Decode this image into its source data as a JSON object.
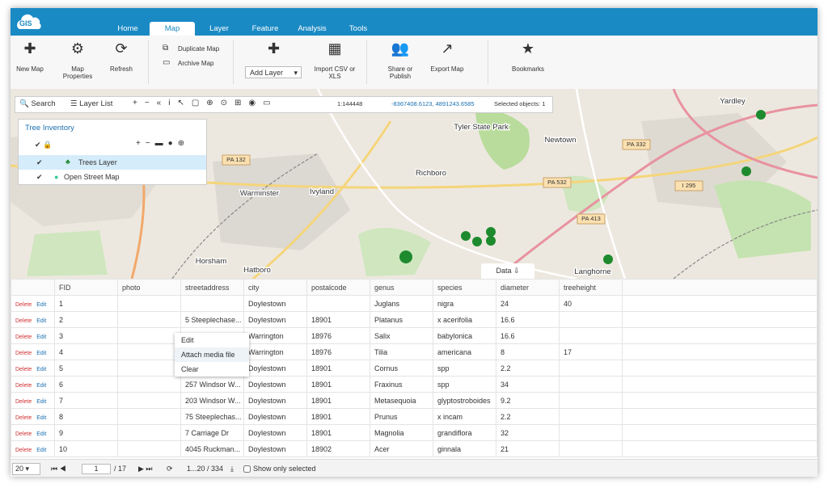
{
  "header": {
    "logo": "GIS",
    "tabs": [
      "Home",
      "Map",
      "Layer",
      "Feature",
      "Analysis",
      "Tools"
    ],
    "active_tab_index": 1
  },
  "ribbon": {
    "buttons": [
      "New Map",
      "Map Properties",
      "Refresh",
      "Duplicate Map",
      "Archive Map",
      "Add Layer",
      "Import CSV or XLS",
      "Share or Publish",
      "Export Map",
      "Bookmarks"
    ]
  },
  "map_toolbar": {
    "search": "Search",
    "layer_list": "Layer List",
    "scale": "1:144448",
    "coordinates": "-8367408.6123, 4891243.6585",
    "selected": "Selected objects: 1"
  },
  "layer_panel": {
    "title": "Tree Inventory",
    "layers": [
      "Trees Layer",
      "Open Street Map"
    ]
  },
  "map_labels": [
    "Warminster",
    "Ivyland",
    "Richboro",
    "Newtown",
    "Yardley",
    "Horsham",
    "Hatboro",
    "Langhorne",
    "Tyler State Park",
    "PA 132",
    "PA 532",
    "PA 332",
    "PA 413",
    "I 295"
  ],
  "data_tab": "Data",
  "table": {
    "action_labels": [
      "Delete",
      "Edit"
    ],
    "columns": [
      "FID",
      "photo",
      "streetaddress",
      "city",
      "postalcode",
      "genus",
      "species",
      "diameter",
      "treeheight"
    ],
    "rows": [
      [
        1,
        null,
        null,
        "Doylestown",
        null,
        "Juglans",
        "nigra",
        24,
        40
      ],
      [
        2,
        null,
        "5 Steeplechase...",
        "Doylestown",
        18901,
        "Platanus",
        "x acerifolia",
        16.6,
        null
      ],
      [
        3,
        null,
        null,
        "Warrington",
        18976,
        "Salix",
        "babylonica",
        16.6,
        null
      ],
      [
        4,
        null,
        null,
        "Warrington",
        18976,
        "Tilia",
        "americana",
        8,
        17
      ],
      [
        5,
        null,
        null,
        "Doylestown",
        18901,
        "Cornus",
        "spp",
        2.2,
        null
      ],
      [
        6,
        null,
        "257 Windsor W...",
        "Doylestown",
        18901,
        "Fraxinus",
        "spp",
        34,
        null
      ],
      [
        7,
        null,
        "203 Windsor W...",
        "Doylestown",
        18901,
        "Metasequoia",
        "glyptostroboides",
        9.2,
        null
      ],
      [
        8,
        null,
        "75 Steeplechas...",
        "Doylestown",
        18901,
        "Prunus",
        "x incam",
        2.2,
        null
      ],
      [
        9,
        null,
        "7 Carriage Dr",
        "Doylestown",
        18901,
        "Magnolia",
        "grandiflora",
        32,
        null
      ],
      [
        10,
        null,
        "4045 Ruckman...",
        "Doylestown",
        18902,
        "Acer",
        "ginnala",
        21,
        null
      ]
    ]
  },
  "context_menu": [
    "Edit",
    "Attach media file",
    "Clear"
  ],
  "pager": {
    "page_size": "20",
    "page": "1",
    "page_count": "/ 17",
    "range": "1...20 / 334",
    "show_selected": "Show only selected"
  }
}
